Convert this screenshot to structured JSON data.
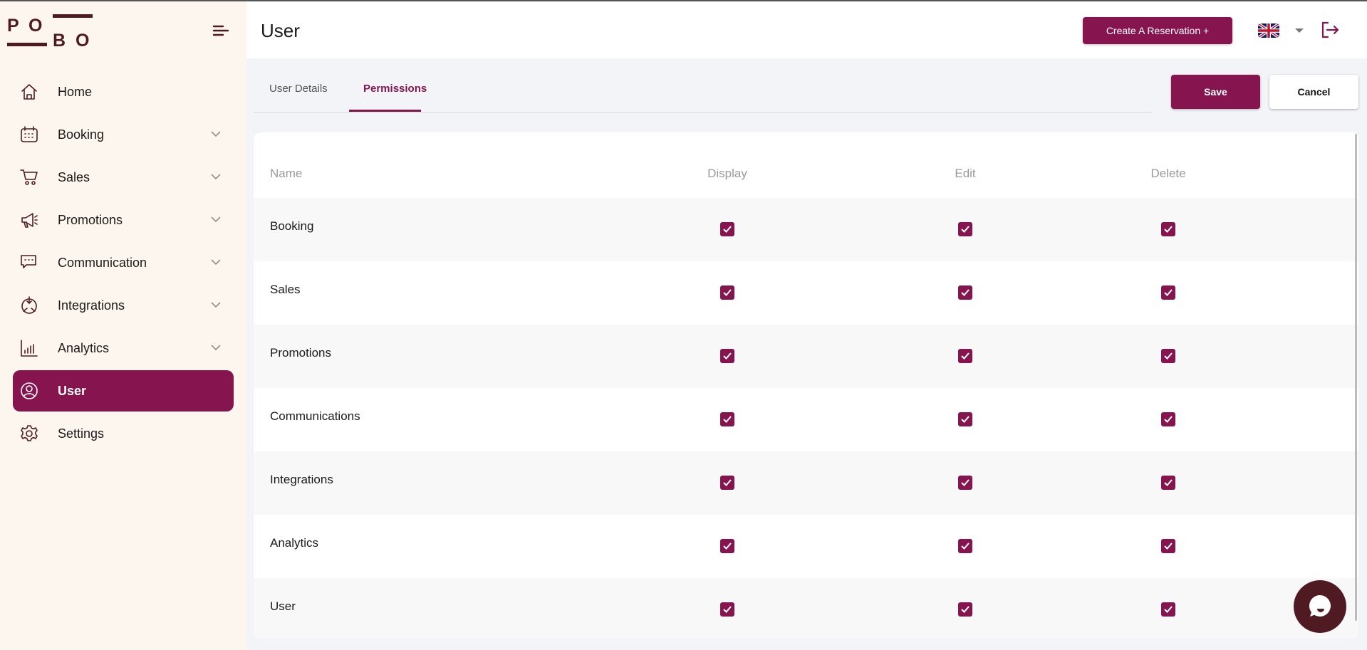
{
  "brand": {
    "logo_text": "POBO",
    "accent": "#86154f",
    "dark": "#4f1a22"
  },
  "sidebar": {
    "items": [
      {
        "label": "Home",
        "icon": "home-icon",
        "expandable": false
      },
      {
        "label": "Booking",
        "icon": "calendar-icon",
        "expandable": true
      },
      {
        "label": "Sales",
        "icon": "cart-icon",
        "expandable": true
      },
      {
        "label": "Promotions",
        "icon": "megaphone-icon",
        "expandable": true
      },
      {
        "label": "Communication",
        "icon": "chat-icon",
        "expandable": true
      },
      {
        "label": "Integrations",
        "icon": "integrations-icon",
        "expandable": true
      },
      {
        "label": "Analytics",
        "icon": "bar-chart-icon",
        "expandable": true
      },
      {
        "label": "User",
        "icon": "user-icon",
        "expandable": false,
        "active": true
      },
      {
        "label": "Settings",
        "icon": "gear-icon",
        "expandable": false
      }
    ]
  },
  "header": {
    "title": "User",
    "create_label": "Create A Reservation +",
    "language": "English (UK)"
  },
  "tabs": [
    {
      "label": "User Details"
    },
    {
      "label": "Permissions",
      "active": true
    }
  ],
  "actions": {
    "save": "Save",
    "cancel": "Cancel"
  },
  "table": {
    "columns": [
      "Name",
      "Display",
      "Edit",
      "Delete"
    ],
    "rows": [
      {
        "name": "Booking",
        "display": true,
        "edit": true,
        "delete": true
      },
      {
        "name": "Sales",
        "display": true,
        "edit": true,
        "delete": true
      },
      {
        "name": "Promotions",
        "display": true,
        "edit": true,
        "delete": true
      },
      {
        "name": "Communications",
        "display": true,
        "edit": true,
        "delete": true
      },
      {
        "name": "Integrations",
        "display": true,
        "edit": true,
        "delete": true
      },
      {
        "name": "Analytics",
        "display": true,
        "edit": true,
        "delete": true
      },
      {
        "name": "User",
        "display": true,
        "edit": true,
        "delete": true
      }
    ]
  }
}
